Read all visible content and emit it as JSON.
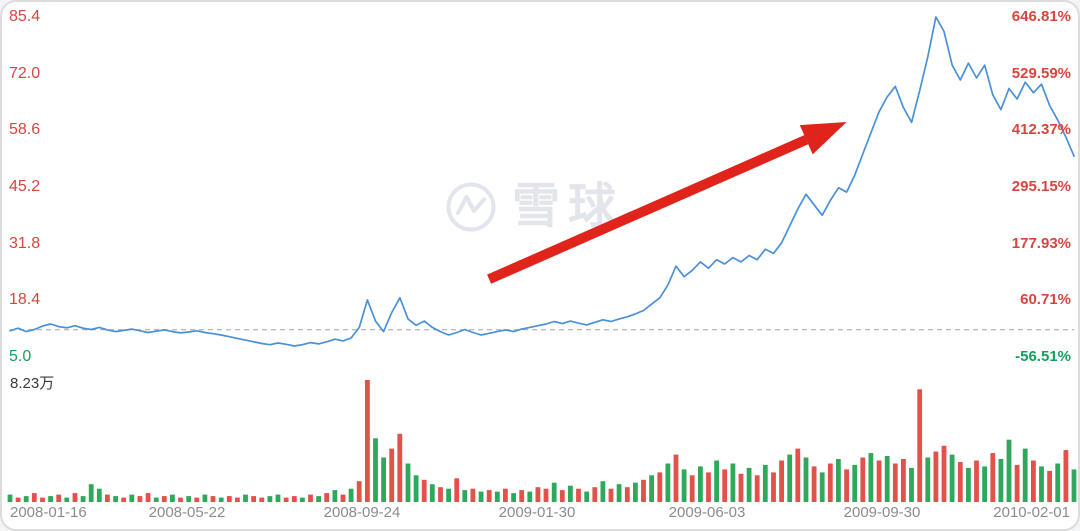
{
  "palette": {
    "up": "#d8453f",
    "down": "#15a05c",
    "vol_up": "#e0524a",
    "vol_down": "#2fa85c",
    "dash": "#a3a3a3",
    "muted": "#8b8b8b",
    "ink": "#3a3a3a",
    "wm": "#e2e5ec",
    "line": "#4a90d8",
    "arrow": "#e0241b"
  },
  "watermark": {
    "text": "雪球",
    "logo": "xueqiu-logo"
  },
  "volume_pane": {
    "max_label": "8.23万"
  },
  "axes": {
    "left": [
      "85.4",
      "72.0",
      "58.6",
      "45.2",
      "31.8",
      "18.4",
      "5.0"
    ],
    "right": [
      "646.81%",
      "529.59%",
      "412.37%",
      "295.15%",
      "177.93%",
      "60.71%",
      "-56.51%"
    ],
    "dates": [
      "2008-01-16",
      "2008-05-22",
      "2008-09-24",
      "2009-01-30",
      "2009-06-03",
      "2009-09-30",
      "2010-02-01"
    ]
  },
  "chart_data": {
    "type": "line",
    "title": "",
    "grid": "off",
    "legend": "none",
    "x_tick_labels": [
      "2008-01-16",
      "2008-05-22",
      "2008-09-24",
      "2009-01-30",
      "2009-06-03",
      "2009-09-30",
      "2010-02-01"
    ],
    "left_axis_price_ticks": [
      85.4,
      72.0,
      58.6,
      45.2,
      31.8,
      18.4,
      5.0
    ],
    "right_axis_percent_ticks": [
      "646.81%",
      "529.59%",
      "412.37%",
      "295.15%",
      "177.93%",
      "60.71%",
      "-56.51%"
    ],
    "ylim_price": [
      5.0,
      85.4
    ],
    "base_price": 11.43,
    "baseline_style": "dashed",
    "series": [
      {
        "name": "price",
        "color": "#4a90d8",
        "values": [
          11.2,
          11.8,
          11.0,
          11.5,
          12.3,
          12.8,
          12.2,
          11.9,
          12.4,
          11.8,
          11.5,
          12.0,
          11.4,
          11.0,
          11.3,
          11.6,
          11.2,
          10.8,
          11.1,
          11.4,
          11.0,
          10.7,
          10.9,
          11.2,
          10.8,
          10.5,
          10.2,
          9.8,
          9.4,
          9.0,
          8.6,
          8.2,
          7.9,
          8.3,
          8.0,
          7.6,
          7.9,
          8.4,
          8.1,
          8.6,
          9.2,
          8.8,
          9.5,
          12.0,
          18.5,
          13.5,
          11.0,
          15.5,
          19.0,
          14.0,
          12.5,
          13.5,
          12.0,
          11.0,
          10.2,
          10.8,
          11.5,
          10.8,
          10.2,
          10.6,
          11.0,
          11.4,
          11.0,
          11.6,
          12.0,
          12.4,
          12.8,
          13.4,
          12.9,
          13.5,
          13.0,
          12.6,
          13.2,
          13.8,
          13.4,
          14.0,
          14.5,
          15.2,
          16.0,
          17.5,
          19.0,
          22.0,
          26.5,
          24.0,
          25.5,
          27.5,
          26.0,
          28.0,
          27.0,
          28.5,
          27.5,
          29.0,
          28.0,
          30.5,
          29.5,
          32.0,
          36.0,
          40.0,
          43.5,
          41.0,
          38.5,
          42.0,
          45.0,
          44.0,
          48.0,
          53.0,
          58.0,
          63.0,
          66.5,
          69.0,
          64.0,
          60.5,
          68.0,
          76.0,
          85.4,
          82.0,
          74.0,
          70.5,
          74.5,
          71.0,
          74.0,
          67.0,
          63.5,
          68.5,
          66.0,
          70.0,
          67.5,
          69.5,
          64.5,
          61.0,
          57.0,
          52.5
        ]
      }
    ],
    "volume": {
      "unit": "万",
      "max": 8.23,
      "max_label": "8.23万",
      "values": [
        0.5,
        0.3,
        0.4,
        0.6,
        0.3,
        0.4,
        0.5,
        0.3,
        0.6,
        0.4,
        1.2,
        0.9,
        0.5,
        0.4,
        0.3,
        0.5,
        0.4,
        0.6,
        0.3,
        0.4,
        0.5,
        0.3,
        0.4,
        0.3,
        0.5,
        0.4,
        0.3,
        0.4,
        0.3,
        0.5,
        0.4,
        0.3,
        0.4,
        0.5,
        0.3,
        0.4,
        0.3,
        0.5,
        0.4,
        0.6,
        0.8,
        0.5,
        0.9,
        1.4,
        8.23,
        4.3,
        3.0,
        3.6,
        4.6,
        2.6,
        1.8,
        1.5,
        1.2,
        1.0,
        0.9,
        1.6,
        0.8,
        0.9,
        0.7,
        0.8,
        0.7,
        0.9,
        0.6,
        0.8,
        0.7,
        1.0,
        0.9,
        1.3,
        0.8,
        1.1,
        0.9,
        0.7,
        1.0,
        1.4,
        0.9,
        1.2,
        1.0,
        1.3,
        1.5,
        1.8,
        2.0,
        2.6,
        3.2,
        2.2,
        1.8,
        2.4,
        2.0,
        2.8,
        2.2,
        2.6,
        1.9,
        2.3,
        1.8,
        2.5,
        2.0,
        2.8,
        3.2,
        3.6,
        3.0,
        2.4,
        2.0,
        2.6,
        2.9,
        2.2,
        2.5,
        3.0,
        3.3,
        2.8,
        3.1,
        2.6,
        2.9,
        2.3,
        7.6,
        3.0,
        3.4,
        3.8,
        3.2,
        2.7,
        2.3,
        2.8,
        2.4,
        3.3,
        2.9,
        4.2,
        2.5,
        3.6,
        2.8,
        2.4,
        2.1,
        2.6,
        3.5,
        2.2
      ],
      "colors": [
        "g",
        "r",
        "g",
        "r",
        "r",
        "g",
        "r",
        "g",
        "r",
        "g",
        "g",
        "g",
        "r",
        "g",
        "r",
        "g",
        "r",
        "r",
        "g",
        "r",
        "g",
        "r",
        "g",
        "r",
        "g",
        "r",
        "g",
        "r",
        "r",
        "g",
        "r",
        "r",
        "g",
        "g",
        "r",
        "r",
        "g",
        "r",
        "g",
        "r",
        "g",
        "r",
        "g",
        "r",
        "r",
        "g",
        "g",
        "r",
        "r",
        "g",
        "g",
        "r",
        "g",
        "r",
        "g",
        "r",
        "g",
        "r",
        "g",
        "r",
        "g",
        "r",
        "g",
        "r",
        "g",
        "r",
        "r",
        "g",
        "r",
        "g",
        "r",
        "g",
        "r",
        "g",
        "r",
        "g",
        "r",
        "g",
        "r",
        "g",
        "r",
        "g",
        "r",
        "g",
        "r",
        "g",
        "r",
        "g",
        "r",
        "g",
        "r",
        "g",
        "r",
        "g",
        "r",
        "r",
        "g",
        "r",
        "g",
        "r",
        "g",
        "r",
        "g",
        "r",
        "g",
        "r",
        "g",
        "r",
        "g",
        "r",
        "r",
        "g",
        "r",
        "g",
        "r",
        "r",
        "g",
        "r",
        "g",
        "r",
        "g",
        "r",
        "g",
        "g",
        "r",
        "g",
        "r",
        "g",
        "r",
        "g",
        "r",
        "g"
      ]
    },
    "annotation_arrow": {
      "color": "#e0241b",
      "from_frac": [
        0.451,
        0.522
      ],
      "to_frac": [
        0.782,
        0.226
      ]
    }
  }
}
